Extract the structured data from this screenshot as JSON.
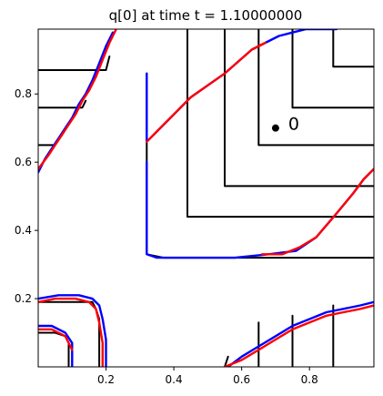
{
  "chart_data": {
    "type": "line",
    "title": "q[0] at time t =     1.10000000",
    "xlabel": "",
    "ylabel": "",
    "xlim": [
      0.0,
      0.99
    ],
    "ylim": [
      0.0,
      0.99
    ],
    "x_ticks": [
      "0.2",
      "0.4",
      "0.6",
      "0.8"
    ],
    "y_ticks": [
      "0.2",
      "0.4",
      "0.6",
      "0.8"
    ],
    "x_tick_values": [
      0.2,
      0.4,
      0.6,
      0.8
    ],
    "y_tick_values": [
      0.2,
      0.4,
      0.6,
      0.8
    ],
    "grid": false,
    "colors": {
      "contour": "#000000",
      "mesh_a": "#0000ff",
      "mesh_b": "#ff0000",
      "marker": "#000000"
    },
    "marker": {
      "x": 0.7,
      "y": 0.7,
      "label": "0"
    },
    "series": [
      {
        "color": "black",
        "x": [
          0.32,
          0.32,
          0.37,
          0.4,
          0.99
        ],
        "y": [
          0.86,
          0.33,
          0.32,
          0.32,
          0.32
        ]
      },
      {
        "color": "black",
        "x": [
          0.44,
          0.44,
          0.48,
          0.99
        ],
        "y": [
          0.99,
          0.44,
          0.44,
          0.44
        ]
      },
      {
        "color": "black",
        "x": [
          0.55,
          0.55,
          0.59,
          0.99
        ],
        "y": [
          0.99,
          0.53,
          0.53,
          0.53
        ]
      },
      {
        "color": "black",
        "x": [
          0.65,
          0.65,
          0.68,
          0.99
        ],
        "y": [
          0.99,
          0.65,
          0.65,
          0.65
        ]
      },
      {
        "color": "black",
        "x": [
          0.75,
          0.75,
          0.78,
          0.99
        ],
        "y": [
          0.99,
          0.76,
          0.76,
          0.76
        ]
      },
      {
        "color": "black",
        "x": [
          0.87,
          0.87,
          0.9,
          0.99
        ],
        "y": [
          0.99,
          0.88,
          0.88,
          0.88
        ]
      },
      {
        "color": "black",
        "x": [
          0.0,
          0.2,
          0.21
        ],
        "y": [
          0.87,
          0.87,
          0.91
        ]
      },
      {
        "color": "black",
        "x": [
          0.0,
          0.13,
          0.14
        ],
        "y": [
          0.76,
          0.76,
          0.78
        ]
      },
      {
        "color": "black",
        "x": [
          0.0,
          0.05
        ],
        "y": [
          0.65,
          0.65
        ]
      },
      {
        "color": "black",
        "x": [
          0.0,
          0.14,
          0.16,
          0.17,
          0.18,
          0.18
        ],
        "y": [
          0.19,
          0.19,
          0.19,
          0.17,
          0.14,
          0.0
        ]
      },
      {
        "color": "black",
        "x": [
          0.0,
          0.05,
          0.08,
          0.09,
          0.09
        ],
        "y": [
          0.1,
          0.1,
          0.09,
          0.07,
          0.0
        ]
      },
      {
        "color": "black",
        "x": [
          0.65,
          0.65
        ],
        "y": [
          0.0,
          0.13
        ]
      },
      {
        "color": "black",
        "x": [
          0.75,
          0.75
        ],
        "y": [
          0.0,
          0.15
        ]
      },
      {
        "color": "black",
        "x": [
          0.87,
          0.87
        ],
        "y": [
          0.0,
          0.18
        ]
      },
      {
        "color": "black",
        "x": [
          0.55,
          0.56
        ],
        "y": [
          0.0,
          0.03
        ]
      },
      {
        "color": "blue",
        "x": [
          0.32,
          0.32,
          0.35,
          0.39,
          0.45,
          0.55,
          0.63,
          0.67,
          0.71,
          0.75,
          0.79,
          0.83,
          0.86,
          0.88
        ],
        "y": [
          0.86,
          0.66,
          0.69,
          0.73,
          0.79,
          0.86,
          0.93,
          0.95,
          0.97,
          0.98,
          0.99,
          0.99,
          0.99,
          0.99
        ]
      },
      {
        "color": "red",
        "x": [
          0.32,
          0.35,
          0.39,
          0.45,
          0.55,
          0.63,
          0.67
        ],
        "y": [
          0.66,
          0.69,
          0.73,
          0.79,
          0.86,
          0.93,
          0.95
        ]
      },
      {
        "color": "blue",
        "x": [
          0.32,
          0.32,
          0.35,
          0.4,
          0.48,
          0.58,
          0.68,
          0.76,
          0.82,
          0.88,
          0.93,
          0.96,
          0.99
        ],
        "y": [
          0.6,
          0.33,
          0.32,
          0.32,
          0.32,
          0.32,
          0.33,
          0.34,
          0.38,
          0.45,
          0.51,
          0.55,
          0.58
        ]
      },
      {
        "color": "red",
        "x": [
          0.66,
          0.72,
          0.77,
          0.82,
          0.88,
          0.93,
          0.96,
          0.99
        ],
        "y": [
          0.33,
          0.33,
          0.35,
          0.38,
          0.45,
          0.51,
          0.55,
          0.58
        ]
      },
      {
        "color": "blue",
        "x": [
          0.0,
          0.02,
          0.04,
          0.06,
          0.08,
          0.1,
          0.12,
          0.14,
          0.16,
          0.18,
          0.2,
          0.22
        ],
        "y": [
          0.57,
          0.61,
          0.64,
          0.67,
          0.7,
          0.73,
          0.77,
          0.8,
          0.84,
          0.89,
          0.94,
          0.98
        ]
      },
      {
        "color": "red",
        "x": [
          0.0,
          0.03,
          0.05,
          0.07,
          0.09,
          0.11,
          0.13,
          0.15,
          0.17,
          0.19,
          0.21,
          0.23
        ],
        "y": [
          0.58,
          0.62,
          0.65,
          0.68,
          0.71,
          0.74,
          0.78,
          0.81,
          0.85,
          0.9,
          0.95,
          0.99
        ]
      },
      {
        "color": "blue",
        "x": [
          0.0,
          0.06,
          0.12,
          0.16,
          0.18,
          0.19,
          0.2,
          0.2
        ],
        "y": [
          0.2,
          0.21,
          0.21,
          0.2,
          0.18,
          0.14,
          0.08,
          0.0
        ]
      },
      {
        "color": "red",
        "x": [
          0.0,
          0.05,
          0.11,
          0.15,
          0.17,
          0.18,
          0.19,
          0.19
        ],
        "y": [
          0.19,
          0.2,
          0.2,
          0.19,
          0.17,
          0.13,
          0.07,
          0.0
        ]
      },
      {
        "color": "blue",
        "x": [
          0.0,
          0.04,
          0.08,
          0.1,
          0.1
        ],
        "y": [
          0.12,
          0.12,
          0.1,
          0.07,
          0.0
        ]
      },
      {
        "color": "red",
        "x": [
          0.0,
          0.04,
          0.08,
          0.1
        ],
        "y": [
          0.11,
          0.11,
          0.09,
          0.05
        ]
      },
      {
        "color": "blue",
        "x": [
          0.56,
          0.6,
          0.65,
          0.7,
          0.75,
          0.8,
          0.85,
          0.9,
          0.95,
          0.99
        ],
        "y": [
          0.0,
          0.03,
          0.06,
          0.09,
          0.12,
          0.14,
          0.16,
          0.17,
          0.18,
          0.19
        ]
      },
      {
        "color": "red",
        "x": [
          0.55,
          0.6,
          0.65,
          0.7,
          0.75,
          0.8,
          0.85,
          0.9,
          0.95,
          0.99
        ],
        "y": [
          0.0,
          0.02,
          0.05,
          0.08,
          0.11,
          0.13,
          0.15,
          0.16,
          0.17,
          0.18
        ]
      }
    ]
  }
}
